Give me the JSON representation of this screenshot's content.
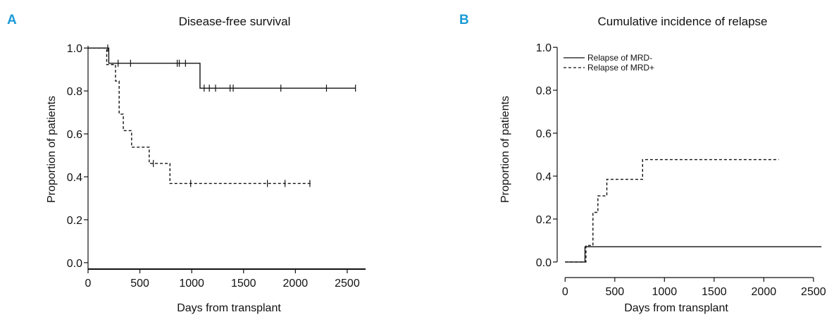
{
  "accent_color": "#1a9ad6",
  "chart_data": [
    {
      "panel": "A",
      "type": "line",
      "title": "Disease-free survival",
      "xlabel": "Days from transplant",
      "ylabel": "Proportion of patients",
      "xlim": [
        0,
        2650
      ],
      "ylim": [
        -0.03,
        1.04
      ],
      "xticks": [
        0,
        500,
        1000,
        1500,
        2000,
        2500
      ],
      "yticks": [
        0.0,
        0.2,
        0.4,
        0.6,
        0.8,
        1.0
      ],
      "ytick_labels": [
        "0.0",
        "0.2",
        "0.4",
        "0.6",
        "0.8",
        "1.0"
      ],
      "legend": null,
      "grid": false,
      "series": [
        {
          "style": "solid",
          "x": [
            0,
            200,
            1080,
            2580
          ],
          "y": [
            1.0,
            0.929,
            0.813,
            0.813
          ],
          "censor_x": [
            190,
            290,
            410,
            860,
            880,
            940,
            1120,
            1170,
            1230,
            1370,
            1400,
            1860,
            2300,
            2580
          ],
          "censor_y": [
            1.0,
            0.929,
            0.929,
            0.929,
            0.929,
            0.929,
            0.813,
            0.813,
            0.813,
            0.813,
            0.813,
            0.813,
            0.813,
            0.813
          ]
        },
        {
          "style": "dashed",
          "x": [
            0,
            180,
            210,
            265,
            300,
            340,
            420,
            590,
            640,
            790,
            2150
          ],
          "y": [
            1.0,
            0.923,
            0.923,
            0.846,
            0.692,
            0.615,
            0.538,
            0.462,
            0.462,
            0.369,
            0.369
          ],
          "censor_x": [
            630,
            990,
            1730,
            1900,
            2140
          ],
          "censor_y": [
            0.462,
            0.369,
            0.369,
            0.369,
            0.369
          ]
        }
      ]
    },
    {
      "panel": "B",
      "type": "line",
      "title": "Cumulative incidence of relapse",
      "xlabel": "Days from transplant",
      "ylabel": "Proportion of patients",
      "xlim": [
        -80,
        2650
      ],
      "ylim": [
        -0.02,
        1.03
      ],
      "xticks": [
        0,
        500,
        1000,
        1500,
        2000,
        2500
      ],
      "yticks": [
        0.0,
        0.2,
        0.4,
        0.6,
        0.8,
        1.0
      ],
      "ytick_labels": [
        "0.0",
        "0.2",
        "0.4",
        "0.6",
        "0.8",
        "1.0"
      ],
      "legend_position": "top-left",
      "grid": false,
      "series": [
        {
          "name": "Relapse of MRD-",
          "style": "solid",
          "x": [
            0,
            200,
            200,
            2580
          ],
          "y": [
            0.0,
            0.0,
            0.071,
            0.071
          ]
        },
        {
          "name": "Relapse of MRD+",
          "style": "dashed",
          "x": [
            0,
            210,
            210,
            280,
            280,
            330,
            330,
            420,
            420,
            780,
            780,
            2150
          ],
          "y": [
            0.0,
            0.0,
            0.077,
            0.077,
            0.231,
            0.231,
            0.308,
            0.308,
            0.385,
            0.385,
            0.477,
            0.477
          ]
        }
      ]
    }
  ]
}
